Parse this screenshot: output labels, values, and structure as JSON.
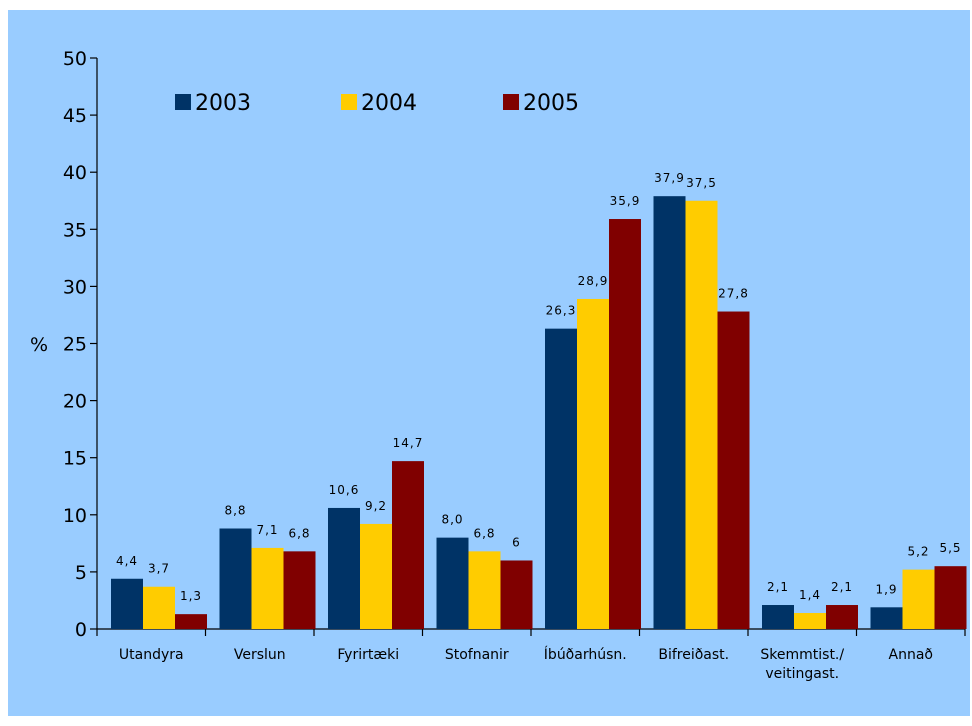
{
  "chart_data": {
    "type": "bar",
    "title": "",
    "xlabel": "",
    "ylabel": "%",
    "ylim": [
      0,
      50
    ],
    "ytick_step": 5,
    "grid": false,
    "legend_position": "top-left",
    "background_color": "#99CCFF",
    "categories": [
      [
        "Utandyra"
      ],
      [
        "Verslun"
      ],
      [
        "Fyrirtæki"
      ],
      [
        "Stofnanir"
      ],
      [
        "Íbúðarhúsn."
      ],
      [
        "Bifreiðast."
      ],
      [
        "Skemmtist./",
        "veitingast."
      ],
      [
        "Annað"
      ]
    ],
    "series": [
      {
        "name": "2003",
        "color": "#003366",
        "values": [
          4.4,
          8.8,
          10.6,
          8.0,
          26.3,
          37.9,
          2.1,
          1.9
        ],
        "labels": [
          "4,4",
          "8,8",
          "10,6",
          "8,0",
          "26,3",
          "37,9",
          "2,1",
          "1,9"
        ]
      },
      {
        "name": "2004",
        "color": "#FFCC00",
        "values": [
          3.7,
          7.1,
          9.2,
          6.8,
          28.9,
          37.5,
          1.4,
          5.2
        ],
        "labels": [
          "3,7",
          "7,1",
          "9,2",
          "6,8",
          "28,9",
          "37,5",
          "1,4",
          "5,2"
        ]
      },
      {
        "name": "2005",
        "color": "#800000",
        "values": [
          1.3,
          6.8,
          14.7,
          6.0,
          35.9,
          27.8,
          2.1,
          5.5
        ],
        "labels": [
          "1,3",
          "6,8",
          "14,7",
          "6",
          "35,9",
          "27,8",
          "2,1",
          "5,5"
        ]
      }
    ]
  }
}
